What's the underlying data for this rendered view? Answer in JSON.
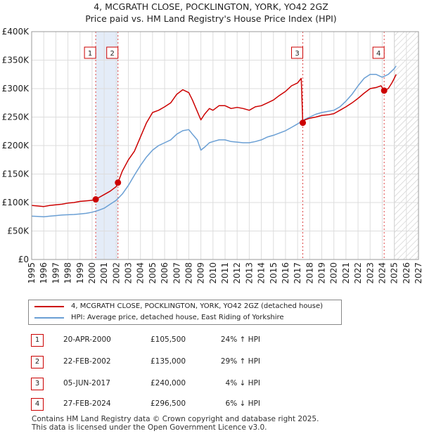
{
  "title_line1": "4, MCGRATH CLOSE, POCKLINGTON, YORK, YO42 2GZ",
  "title_line2": "Price paid vs. HM Land Registry's House Price Index (HPI)",
  "chart_data": {
    "type": "line",
    "title": "Price paid vs. HM Land Registry's House Price Index (HPI)",
    "x_range": [
      1995,
      2027
    ],
    "ylim": [
      0,
      400000
    ],
    "y_ticks": [
      {
        "value": 0,
        "label": "£0"
      },
      {
        "value": 50000,
        "label": "£50K"
      },
      {
        "value": 100000,
        "label": "£100K"
      },
      {
        "value": 150000,
        "label": "£150K"
      },
      {
        "value": 200000,
        "label": "£200K"
      },
      {
        "value": 250000,
        "label": "£250K"
      },
      {
        "value": 300000,
        "label": "£300K"
      },
      {
        "value": 350000,
        "label": "£350K"
      },
      {
        "value": 400000,
        "label": "£400K"
      }
    ],
    "x_ticks": [
      "1995",
      "1996",
      "1997",
      "1998",
      "1999",
      "2000",
      "2001",
      "2002",
      "2003",
      "2004",
      "2005",
      "2006",
      "2007",
      "2008",
      "2009",
      "2010",
      "2011",
      "2012",
      "2013",
      "2014",
      "2015",
      "2016",
      "2017",
      "2018",
      "2019",
      "2020",
      "2021",
      "2022",
      "2023",
      "2024",
      "2025",
      "2026",
      "2027"
    ],
    "shaded_periods": [
      [
        2000.3,
        2002.14
      ]
    ],
    "forecast_start": 2025.0,
    "series": [
      {
        "name": "4, MCGRATH CLOSE, POCKLINGTON, YORK, YO42 2GZ (detached house)",
        "color": "#cc0000",
        "x": [
          1995.0,
          1995.5,
          1996.0,
          1996.5,
          1997.0,
          1997.5,
          1998.0,
          1998.5,
          1999.0,
          1999.5,
          2000.0,
          2000.3,
          2000.5,
          2001.0,
          2001.5,
          2002.0,
          2002.14,
          2002.5,
          2003.0,
          2003.5,
          2004.0,
          2004.5,
          2005.0,
          2005.5,
          2006.0,
          2006.5,
          2007.0,
          2007.5,
          2008.0,
          2008.3,
          2008.7,
          2009.0,
          2009.3,
          2009.7,
          2010.0,
          2010.5,
          2011.0,
          2011.5,
          2012.0,
          2012.5,
          2013.0,
          2013.5,
          2014.0,
          2014.5,
          2015.0,
          2015.5,
          2016.0,
          2016.5,
          2017.0,
          2017.3,
          2017.43,
          2017.6,
          2018.0,
          2018.5,
          2019.0,
          2019.5,
          2020.0,
          2020.5,
          2021.0,
          2021.5,
          2022.0,
          2022.5,
          2023.0,
          2023.5,
          2023.9,
          2024.16,
          2024.5,
          2024.8,
          2025.0,
          2025.15
        ],
        "y": [
          95000,
          94000,
          93000,
          95000,
          96000,
          97000,
          99000,
          100000,
          102000,
          103000,
          104000,
          105500,
          108000,
          114000,
          120000,
          128000,
          135000,
          155000,
          175000,
          190000,
          215000,
          240000,
          258000,
          262000,
          268000,
          275000,
          290000,
          298000,
          293000,
          280000,
          260000,
          245000,
          255000,
          265000,
          262000,
          270000,
          270000,
          265000,
          267000,
          265000,
          262000,
          268000,
          270000,
          275000,
          280000,
          288000,
          295000,
          305000,
          310000,
          318000,
          240000,
          245000,
          248000,
          250000,
          253000,
          254000,
          256000,
          262000,
          268000,
          275000,
          283000,
          292000,
          300000,
          302000,
          305000,
          296500,
          300000,
          310000,
          318000,
          325000
        ]
      },
      {
        "name": "HPI: Average price, detached house, East Riding of Yorkshire",
        "color": "#6a9fd4",
        "x": [
          1995.0,
          1995.5,
          1996.0,
          1996.5,
          1997.0,
          1997.5,
          1998.0,
          1998.5,
          1999.0,
          1999.5,
          2000.0,
          2000.5,
          2001.0,
          2001.5,
          2002.0,
          2002.5,
          2003.0,
          2003.5,
          2004.0,
          2004.5,
          2005.0,
          2005.5,
          2006.0,
          2006.5,
          2007.0,
          2007.5,
          2008.0,
          2008.3,
          2008.7,
          2009.0,
          2009.3,
          2009.7,
          2010.0,
          2010.5,
          2011.0,
          2011.5,
          2012.0,
          2012.5,
          2013.0,
          2013.5,
          2014.0,
          2014.5,
          2015.0,
          2015.5,
          2016.0,
          2016.5,
          2017.0,
          2017.5,
          2018.0,
          2018.5,
          2019.0,
          2019.5,
          2020.0,
          2020.5,
          2021.0,
          2021.5,
          2022.0,
          2022.5,
          2023.0,
          2023.5,
          2024.0,
          2024.5,
          2025.0,
          2025.15
        ],
        "y": [
          76000,
          75500,
          75000,
          76000,
          77000,
          78000,
          78500,
          79000,
          80000,
          81000,
          83000,
          86000,
          90000,
          97000,
          104000,
          115000,
          130000,
          148000,
          165000,
          180000,
          192000,
          200000,
          205000,
          210000,
          220000,
          226000,
          228000,
          220000,
          210000,
          192000,
          197000,
          205000,
          207000,
          210000,
          210000,
          207000,
          206000,
          205000,
          205000,
          207000,
          210000,
          215000,
          218000,
          222000,
          226000,
          232000,
          238000,
          245000,
          250000,
          255000,
          258000,
          260000,
          262000,
          268000,
          278000,
          290000,
          305000,
          318000,
          325000,
          325000,
          320000,
          325000,
          335000,
          340000
        ]
      }
    ],
    "transactions": [
      {
        "label": "1",
        "x": 2000.3,
        "y": 105500
      },
      {
        "label": "2",
        "x": 2002.14,
        "y": 135000
      },
      {
        "label": "3",
        "x": 2017.43,
        "y": 240000
      },
      {
        "label": "4",
        "x": 2024.16,
        "y": 296500
      }
    ]
  },
  "legend": {
    "property_label": "4, MCGRATH CLOSE, POCKLINGTON, YORK, YO42 2GZ (detached house)",
    "hpi_label": "HPI: Average price, detached house, East Riding of Yorkshire"
  },
  "transactions_table": [
    {
      "num": "1",
      "date": "20-APR-2000",
      "price": "£105,500",
      "hpi": "24% ↑ HPI"
    },
    {
      "num": "2",
      "date": "22-FEB-2002",
      "price": "£135,000",
      "hpi": "29% ↑ HPI"
    },
    {
      "num": "3",
      "date": "05-JUN-2017",
      "price": "£240,000",
      "hpi": "4% ↓ HPI"
    },
    {
      "num": "4",
      "date": "27-FEB-2024",
      "price": "£296,500",
      "hpi": "6% ↓ HPI"
    }
  ],
  "footer_line1": "Contains HM Land Registry data © Crown copyright and database right 2025.",
  "footer_line2": "This data is licensed under the Open Government Licence v3.0."
}
